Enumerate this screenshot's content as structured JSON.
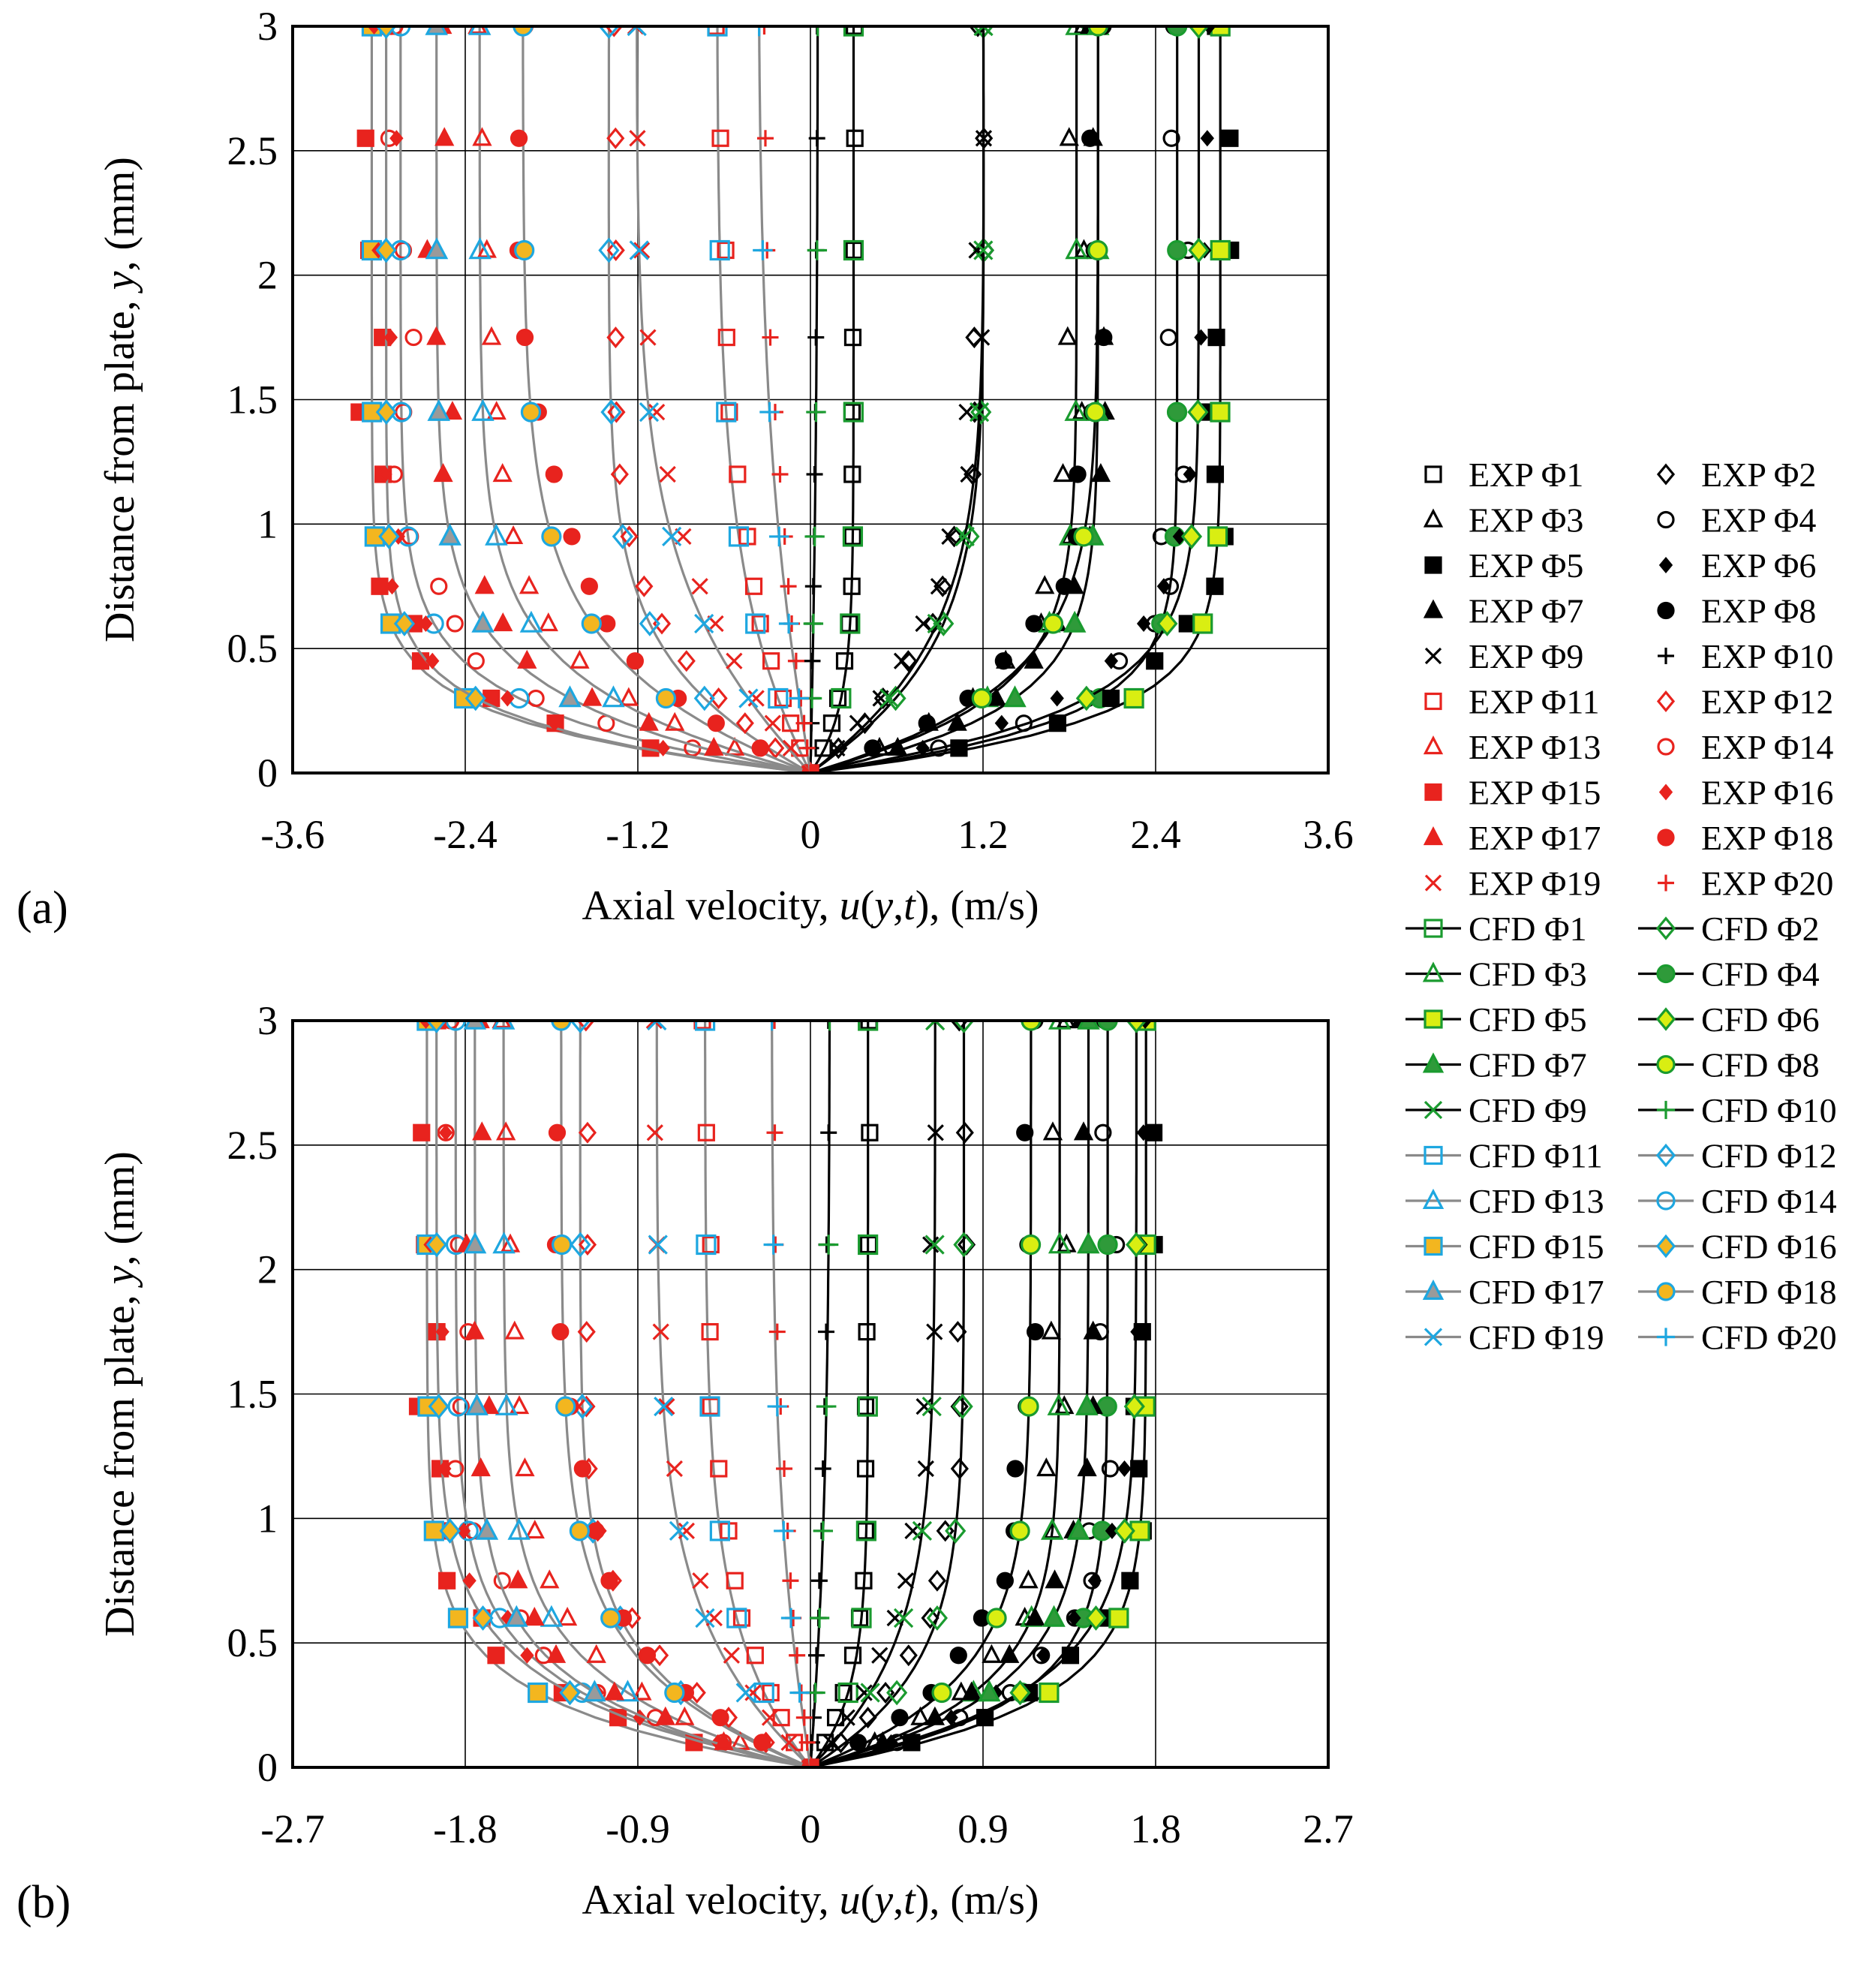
{
  "legend_entries": [
    {
      "label": "EXP Φ1",
      "kind": "exp",
      "marker": "square",
      "color": "#000000",
      "fill": "none"
    },
    {
      "label": "EXP Φ2",
      "kind": "exp",
      "marker": "diamond",
      "color": "#000000",
      "fill": "none"
    },
    {
      "label": "EXP Φ3",
      "kind": "exp",
      "marker": "triangle",
      "color": "#000000",
      "fill": "none"
    },
    {
      "label": "EXP Φ4",
      "kind": "exp",
      "marker": "circle",
      "color": "#000000",
      "fill": "none"
    },
    {
      "label": "EXP Φ5",
      "kind": "exp",
      "marker": "square",
      "color": "#000000",
      "fill": "#000000"
    },
    {
      "label": "EXP Φ6",
      "kind": "exp",
      "marker": "diamond-small",
      "color": "#000000",
      "fill": "#000000"
    },
    {
      "label": "EXP Φ7",
      "kind": "exp",
      "marker": "triangle",
      "color": "#000000",
      "fill": "#000000"
    },
    {
      "label": "EXP Φ8",
      "kind": "exp",
      "marker": "circle",
      "color": "#000000",
      "fill": "#000000"
    },
    {
      "label": "EXP Φ9",
      "kind": "exp",
      "marker": "x",
      "color": "#000000",
      "fill": "none"
    },
    {
      "label": "EXP Φ10",
      "kind": "exp",
      "marker": "plus",
      "color": "#000000",
      "fill": "none"
    },
    {
      "label": "EXP Φ11",
      "kind": "exp",
      "marker": "square",
      "color": "#e8231e",
      "fill": "none"
    },
    {
      "label": "EXP Φ12",
      "kind": "exp",
      "marker": "diamond",
      "color": "#e8231e",
      "fill": "none"
    },
    {
      "label": "EXP Φ13",
      "kind": "exp",
      "marker": "triangle",
      "color": "#e8231e",
      "fill": "none"
    },
    {
      "label": "EXP Φ14",
      "kind": "exp",
      "marker": "circle",
      "color": "#e8231e",
      "fill": "none"
    },
    {
      "label": "EXP Φ15",
      "kind": "exp",
      "marker": "square",
      "color": "#e8231e",
      "fill": "#e8231e"
    },
    {
      "label": "EXP Φ16",
      "kind": "exp",
      "marker": "diamond-small",
      "color": "#e8231e",
      "fill": "#e8231e"
    },
    {
      "label": "EXP Φ17",
      "kind": "exp",
      "marker": "triangle",
      "color": "#e8231e",
      "fill": "#e8231e"
    },
    {
      "label": "EXP Φ18",
      "kind": "exp",
      "marker": "circle",
      "color": "#e8231e",
      "fill": "#e8231e"
    },
    {
      "label": "EXP Φ19",
      "kind": "exp",
      "marker": "x",
      "color": "#e8231e",
      "fill": "none"
    },
    {
      "label": "EXP Φ20",
      "kind": "exp",
      "marker": "plus",
      "color": "#e8231e",
      "fill": "none"
    },
    {
      "label": "CFD Φ1",
      "kind": "cfd",
      "marker": "square",
      "line": "#000000",
      "color": "#1a9b2f",
      "fill": "none"
    },
    {
      "label": "CFD Φ2",
      "kind": "cfd",
      "marker": "diamond",
      "line": "#000000",
      "color": "#1a9b2f",
      "fill": "none"
    },
    {
      "label": "CFD Φ3",
      "kind": "cfd",
      "marker": "triangle",
      "line": "#000000",
      "color": "#1a9b2f",
      "fill": "none"
    },
    {
      "label": "CFD Φ4",
      "kind": "cfd",
      "marker": "circle",
      "line": "#000000",
      "color": "#1a9b2f",
      "fill": "#2f9a3a"
    },
    {
      "label": "CFD Φ5",
      "kind": "cfd",
      "marker": "square",
      "line": "#000000",
      "color": "#1a9b2f",
      "fill": "#d9ee12"
    },
    {
      "label": "CFD Φ6",
      "kind": "cfd",
      "marker": "diamond",
      "line": "#000000",
      "color": "#1a9b2f",
      "fill": "#d9ee12"
    },
    {
      "label": "CFD Φ7",
      "kind": "cfd",
      "marker": "triangle",
      "line": "#000000",
      "color": "#1a9b2f",
      "fill": "#2f9a3a"
    },
    {
      "label": "CFD Φ8",
      "kind": "cfd",
      "marker": "circle",
      "line": "#000000",
      "color": "#1a9b2f",
      "fill": "#d9ee12"
    },
    {
      "label": "CFD Φ9",
      "kind": "cfd",
      "marker": "x",
      "line": "#000000",
      "color": "#1a9b2f",
      "fill": "none"
    },
    {
      "label": "CFD Φ10",
      "kind": "cfd",
      "marker": "plus",
      "line": "#000000",
      "color": "#1a9b2f",
      "fill": "none"
    },
    {
      "label": "CFD Φ11",
      "kind": "cfd",
      "marker": "square",
      "line": "#8a8a8a",
      "color": "#1ea7e0",
      "fill": "none"
    },
    {
      "label": "CFD Φ12",
      "kind": "cfd",
      "marker": "diamond",
      "line": "#8a8a8a",
      "color": "#1ea7e0",
      "fill": "none"
    },
    {
      "label": "CFD Φ13",
      "kind": "cfd",
      "marker": "triangle",
      "line": "#8a8a8a",
      "color": "#1ea7e0",
      "fill": "none"
    },
    {
      "label": "CFD Φ14",
      "kind": "cfd",
      "marker": "circle",
      "line": "#8a8a8a",
      "color": "#1ea7e0",
      "fill": "none"
    },
    {
      "label": "CFD Φ15",
      "kind": "cfd",
      "marker": "square",
      "line": "#8a8a8a",
      "color": "#1ea7e0",
      "fill": "#f3b61f"
    },
    {
      "label": "CFD Φ16",
      "kind": "cfd",
      "marker": "diamond",
      "line": "#8a8a8a",
      "color": "#1ea7e0",
      "fill": "#f3b61f"
    },
    {
      "label": "CFD Φ17",
      "kind": "cfd",
      "marker": "triangle",
      "line": "#8a8a8a",
      "color": "#1ea7e0",
      "fill": "#9a9a9a"
    },
    {
      "label": "CFD Φ18",
      "kind": "cfd",
      "marker": "circle",
      "line": "#8a8a8a",
      "color": "#1ea7e0",
      "fill": "#f3b61f"
    },
    {
      "label": "CFD Φ19",
      "kind": "cfd",
      "marker": "x",
      "line": "#8a8a8a",
      "color": "#1ea7e0",
      "fill": "none"
    },
    {
      "label": "CFD Φ20",
      "kind": "cfd",
      "marker": "plus",
      "line": "#8a8a8a",
      "color": "#1ea7e0",
      "fill": "none"
    }
  ],
  "chart_data": [
    {
      "type": "scatter",
      "panel_label": "(a)",
      "title": "",
      "xlabel_prefix": "Axial velocity, ",
      "xlabel_var": "u",
      "xlabel_mid1": "(",
      "xlabel_var2": "y",
      "xlabel_mid2": ",",
      "xlabel_var3": "t",
      "xlabel_suffix": "), (m/s)",
      "ylabel_prefix": "Distance from plate, ",
      "ylabel_var": "y",
      "ylabel_suffix": ", (mm)",
      "xlim": [
        -3.6,
        3.6
      ],
      "ylim": [
        0,
        3
      ],
      "xticks": [
        -3.6,
        -2.4,
        -1.2,
        0,
        1.2,
        2.4,
        3.6
      ],
      "xtick_labels": [
        "-3.6",
        "-2.4",
        "-1.2",
        "0",
        "1.2",
        "2.4",
        "3.6"
      ],
      "yticks": [
        0,
        0.5,
        1,
        1.5,
        2,
        2.5,
        3
      ],
      "ytick_labels": [
        "0",
        "0.5",
        "1",
        "1.5",
        "2",
        "2.5",
        "3"
      ],
      "grid": true,
      "series_core_velocity": [
        0.3,
        1.2,
        1.85,
        2.55,
        2.85,
        2.7,
        2.0,
        2.0,
        1.2,
        0.05,
        -0.65,
        -1.4,
        -2.3,
        -2.85,
        -3.05,
        -2.95,
        -2.6,
        -2.0,
        -1.2,
        -0.35
      ],
      "series_thickness_mm": [
        0.25,
        0.5,
        0.3,
        0.2,
        0.2,
        0.25,
        0.25,
        0.35,
        0.55,
        1.4,
        0.75,
        0.45,
        0.35,
        0.25,
        0.2,
        0.2,
        0.3,
        0.45,
        0.75,
        1.3
      ],
      "series_near_wall_overshoot": [
        0.05,
        0.3,
        0.15,
        0.05,
        0.05,
        0.05,
        0.05,
        0.1,
        0.3,
        0.6,
        0.2,
        0.25,
        0.1,
        0.05,
        0.05,
        0.05,
        0.05,
        0.1,
        0.35,
        0.6
      ]
    },
    {
      "type": "scatter",
      "panel_label": "(b)",
      "title": "",
      "xlabel_prefix": "Axial velocity, ",
      "xlabel_var": "u",
      "xlabel_mid1": "(",
      "xlabel_var2": "y",
      "xlabel_mid2": ",",
      "xlabel_var3": "t",
      "xlabel_suffix": "), (m/s)",
      "ylabel_prefix": "Distance from plate, ",
      "ylabel_var": "y",
      "ylabel_suffix": ", (mm)",
      "xlim": [
        -2.7,
        2.7
      ],
      "ylim": [
        0,
        3
      ],
      "xticks": [
        -2.7,
        -1.8,
        -0.9,
        0,
        0.9,
        1.8,
        2.7
      ],
      "xtick_labels": [
        "-2.7",
        "-1.8",
        "-0.9",
        "0",
        "0.9",
        "1.8",
        "2.7"
      ],
      "yticks": [
        0,
        0.5,
        1,
        1.5,
        2,
        2.5,
        3
      ],
      "ytick_labels": [
        "0",
        "0.5",
        "1",
        "1.5",
        "2",
        "2.5",
        "3"
      ],
      "grid": true,
      "series_core_velocity": [
        0.3,
        0.8,
        1.3,
        1.55,
        1.75,
        1.7,
        1.45,
        1.15,
        0.65,
        0.1,
        -0.55,
        -1.2,
        -1.6,
        -1.85,
        -2.0,
        -1.95,
        -1.75,
        -1.3,
        -0.8,
        -0.2
      ],
      "series_thickness_mm": [
        0.3,
        0.4,
        0.3,
        0.25,
        0.25,
        0.3,
        0.3,
        0.35,
        0.5,
        1.1,
        0.55,
        0.4,
        0.35,
        0.3,
        0.25,
        0.3,
        0.3,
        0.4,
        0.6,
        1.0
      ],
      "series_near_wall_overshoot": [
        0.1,
        0.2,
        0.1,
        0.05,
        0.05,
        0.05,
        0.05,
        0.1,
        0.2,
        0.4,
        0.15,
        0.2,
        0.1,
        0.05,
        0.05,
        0.05,
        0.05,
        0.1,
        0.25,
        0.4
      ]
    }
  ]
}
